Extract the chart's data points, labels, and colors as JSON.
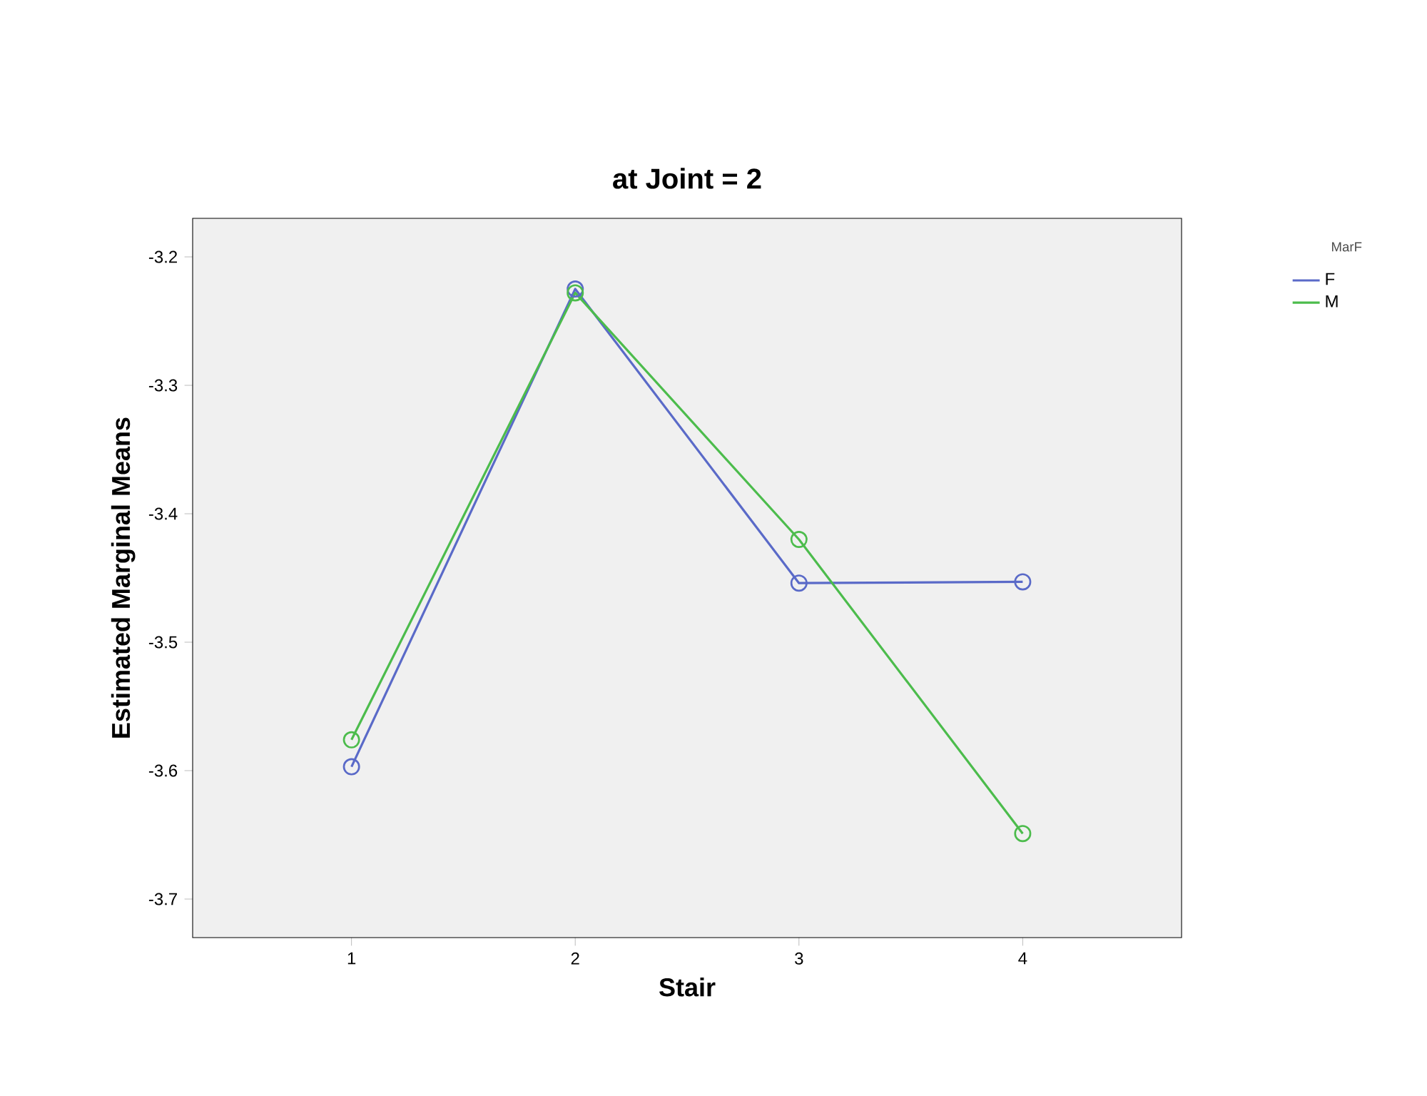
{
  "chart_data": {
    "type": "line",
    "title": "at Joint = 2",
    "xlabel": "Stair",
    "ylabel": "Estimated Marginal Means",
    "legend_title": "MarF",
    "x": [
      1,
      2,
      3,
      4
    ],
    "series": [
      {
        "name": "F",
        "color": "#5a6ac8",
        "values": [
          -3.597,
          -3.225,
          -3.454,
          -3.453
        ]
      },
      {
        "name": "M",
        "color": "#4cbc4c",
        "values": [
          -3.576,
          -3.228,
          -3.42,
          -3.649
        ]
      }
    ],
    "xlim": [
      0.29,
      4.71
    ],
    "ylim": [
      -3.73,
      -3.17
    ],
    "xticks": [
      1,
      2,
      3,
      4
    ],
    "yticks": [
      {
        "value": -3.2,
        "label": "-3.2"
      },
      {
        "value": -3.3,
        "label": "-3.3"
      },
      {
        "value": -3.4,
        "label": "-3.4"
      },
      {
        "value": -3.5,
        "label": "-3.5"
      },
      {
        "value": -3.6,
        "label": "-3.6"
      },
      {
        "value": -3.7,
        "label": "-3.7"
      }
    ],
    "grid": false,
    "legend": "top right",
    "marker": "circle",
    "line_style": "solid"
  }
}
